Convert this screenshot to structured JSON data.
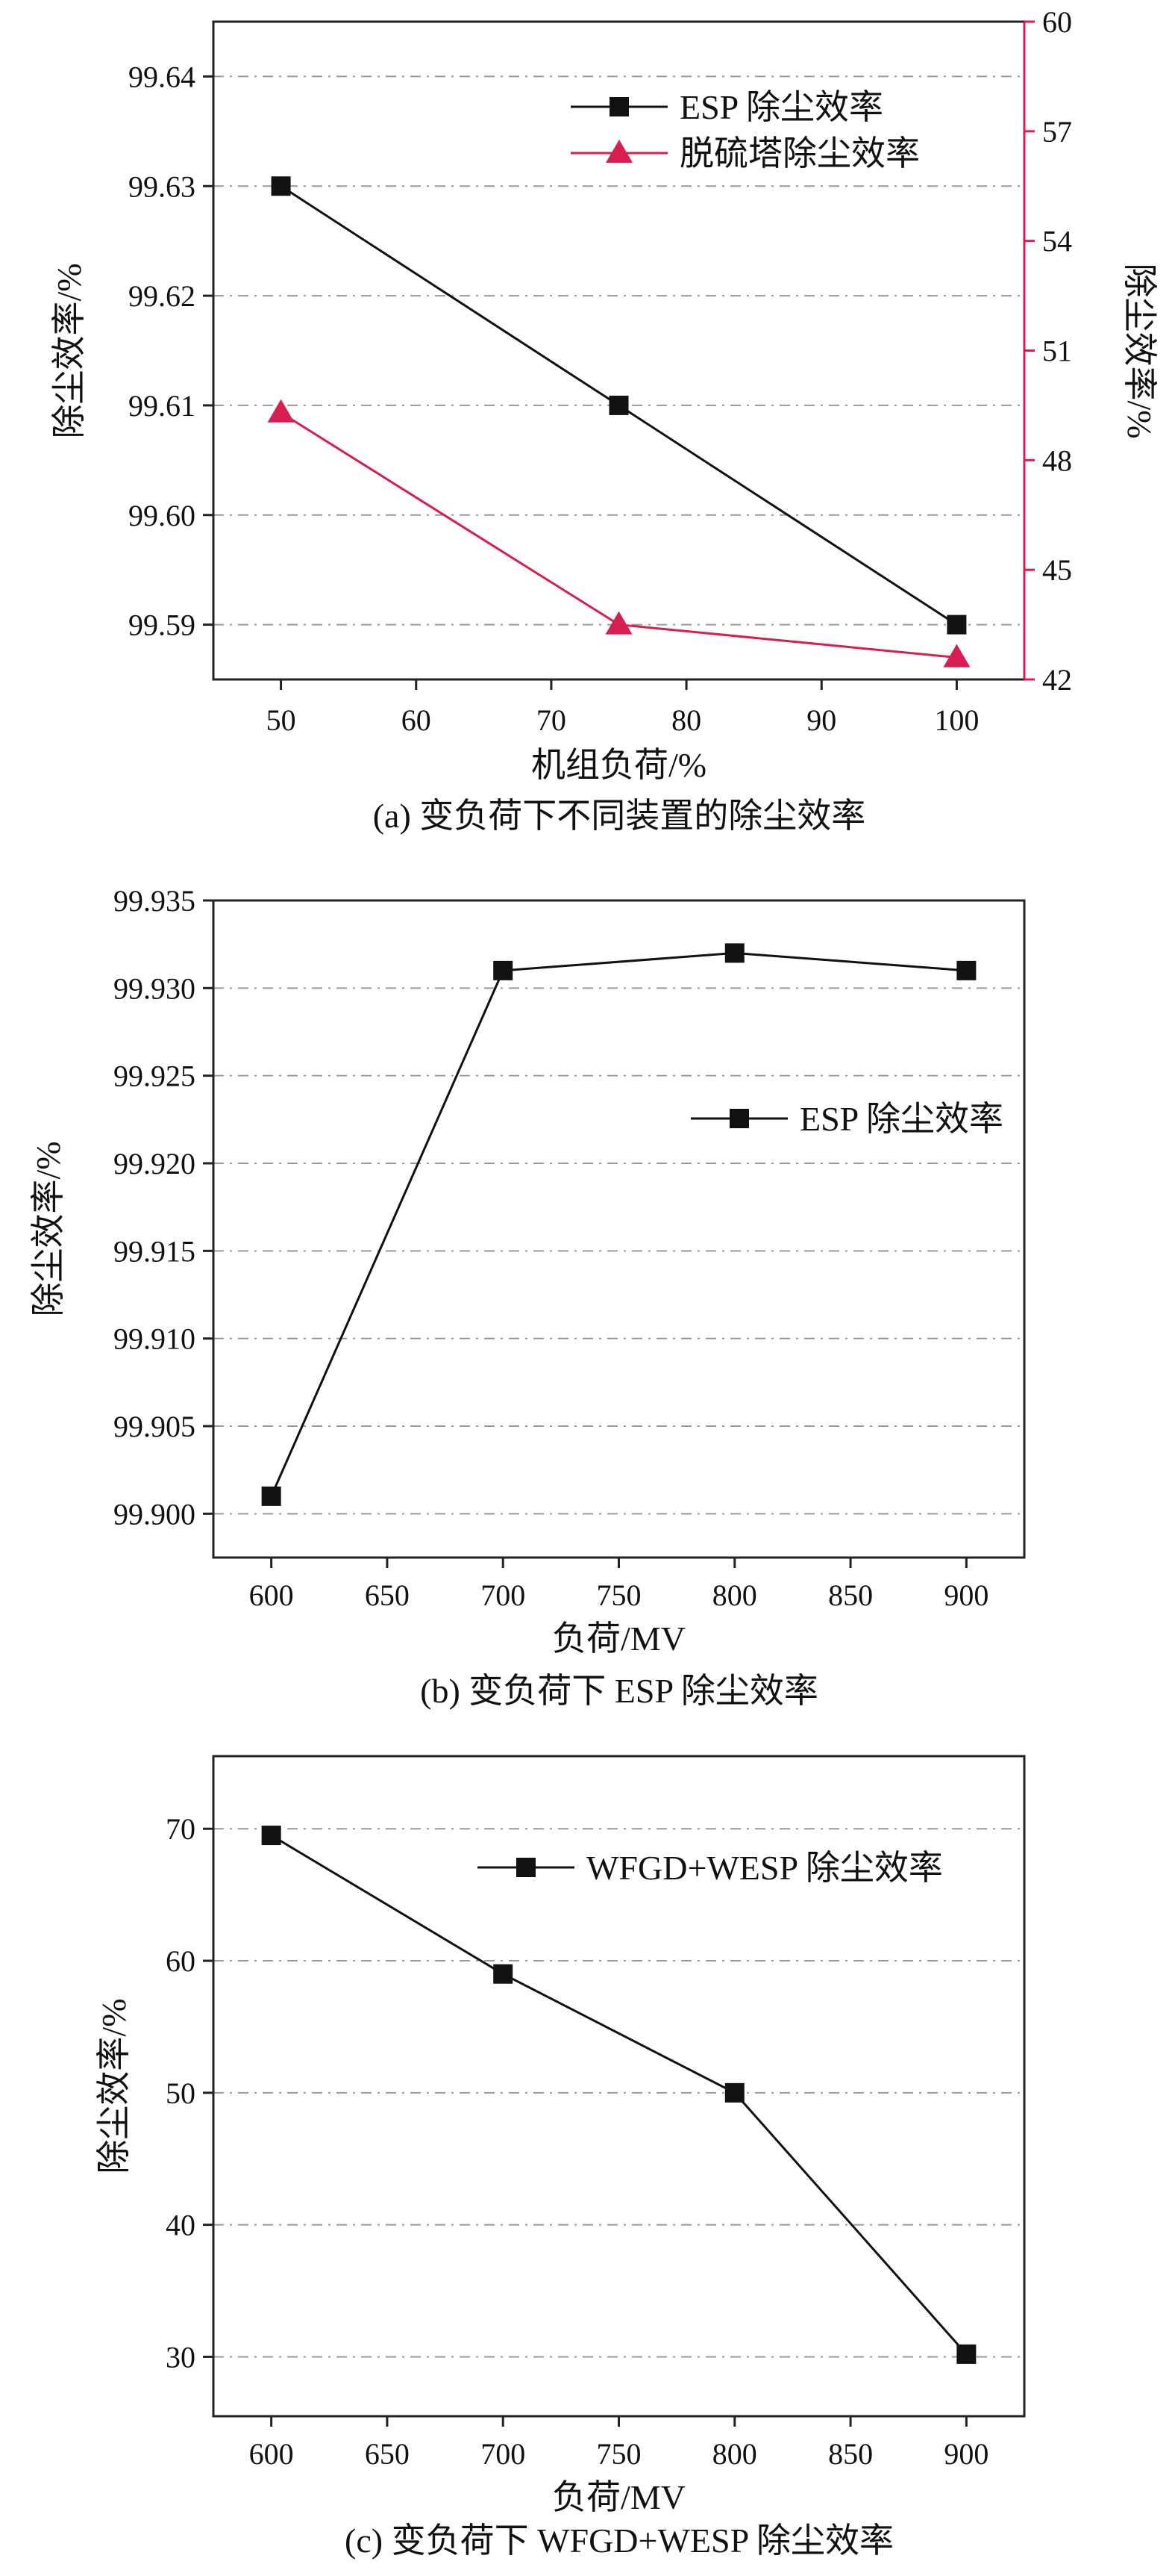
{
  "chart_data": [
    {
      "type": "line",
      "caption": "(a) 变负荷下不同装置的除尘效率",
      "xlabel": "机组负荷/%",
      "ylabel": "除尘效率/%",
      "ylabel_right": "除尘效率/%",
      "x": [
        50,
        75,
        100
      ],
      "xlim": [
        45,
        105
      ],
      "xticks": [
        50,
        60,
        70,
        80,
        90,
        100
      ],
      "ylim": [
        99.585,
        99.645
      ],
      "yticks": [
        99.59,
        99.6,
        99.61,
        99.62,
        99.63,
        99.64
      ],
      "ytick_labels": [
        "99.59",
        "99.60",
        "99.61",
        "99.62",
        "99.63",
        "99.64"
      ],
      "ylim_right": [
        42,
        60
      ],
      "yticks_right": [
        42,
        45,
        48,
        51,
        54,
        57,
        60
      ],
      "grid": "horizontal dash-dot",
      "legend_position": "top-right",
      "series": [
        {
          "name": "ESP 除尘效率",
          "values": [
            99.63,
            99.61,
            99.59
          ],
          "axis": "left",
          "color": "#111111",
          "marker": "square"
        },
        {
          "name": "脱硫塔除尘效率",
          "values": [
            49.3,
            43.5,
            42.6
          ],
          "axis": "right",
          "color": "#d81e50",
          "marker": "triangle"
        }
      ]
    },
    {
      "type": "line",
      "caption": "(b) 变负荷下 ESP 除尘效率",
      "xlabel": "负荷/MV",
      "ylabel": "除尘效率/%",
      "x": [
        600,
        700,
        800,
        900
      ],
      "xlim": [
        575,
        925
      ],
      "xticks": [
        600,
        650,
        700,
        750,
        800,
        850,
        900
      ],
      "ylim": [
        99.8975,
        99.935
      ],
      "yticks": [
        99.9,
        99.905,
        99.91,
        99.915,
        99.92,
        99.925,
        99.93,
        99.935
      ],
      "ytick_labels": [
        "99.900",
        "99.905",
        "99.910",
        "99.915",
        "99.920",
        "99.925",
        "99.930",
        "99.935"
      ],
      "grid": "horizontal dash-dot",
      "legend_position": "right",
      "series": [
        {
          "name": "ESP 除尘效率",
          "values": [
            99.901,
            99.931,
            99.932,
            99.931
          ],
          "axis": "left",
          "color": "#111111",
          "marker": "square"
        }
      ]
    },
    {
      "type": "line",
      "caption": "(c) 变负荷下 WFGD+WESP 除尘效率",
      "xlabel": "负荷/MV",
      "ylabel": "除尘效率/%",
      "x": [
        600,
        700,
        800,
        900
      ],
      "xlim": [
        575,
        925
      ],
      "xticks": [
        600,
        650,
        700,
        750,
        800,
        850,
        900
      ],
      "ylim": [
        25.5,
        75.5
      ],
      "yticks": [
        30,
        40,
        50,
        60,
        70
      ],
      "ytick_labels": [
        "30",
        "40",
        "50",
        "60",
        "70"
      ],
      "grid": "horizontal dash-dot",
      "legend_position": "top-right",
      "series": [
        {
          "name": "WFGD+WESP 除尘效率",
          "values": [
            69.5,
            59,
            50,
            30.2
          ],
          "axis": "left",
          "color": "#111111",
          "marker": "square"
        }
      ]
    }
  ]
}
